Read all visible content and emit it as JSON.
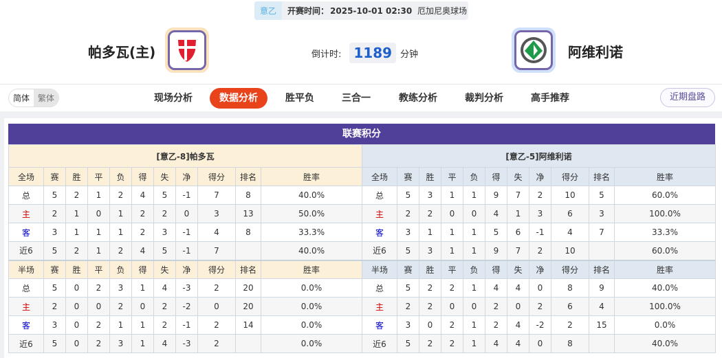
{
  "header": {
    "league": "意乙",
    "time_label": "开赛时间：",
    "time": "2025-10-01 02:30",
    "venue": "厄加尼奥球场",
    "home_team": "帕多瓦(主)",
    "away_team": "阿维利诺",
    "countdown_label": "倒计时:",
    "countdown": "1189",
    "countdown_unit": "分钟"
  },
  "nav": {
    "lang": [
      "简体",
      "繁体"
    ],
    "tabs": [
      "现场分析",
      "数据分析",
      "胜平负",
      "三合一",
      "教练分析",
      "裁判分析",
      "高手推荐"
    ],
    "active": "数据分析",
    "recent": "近期盘路"
  },
  "colors": {
    "accent": "#e8431a",
    "title_bar": "#51409a",
    "home_label": "#d20000",
    "away_label": "#0000cc"
  },
  "standings": {
    "title": "联赛积分",
    "columns": [
      "赛",
      "胜",
      "平",
      "负",
      "得",
      "失",
      "净",
      "得分",
      "排名",
      "胜率"
    ],
    "tables": [
      {
        "team": "[意乙-8]帕多瓦",
        "full_label": "全场",
        "full": [
          [
            "总",
            "5",
            "2",
            "1",
            "2",
            "4",
            "5",
            "-1",
            "7",
            "8",
            "40.0%"
          ],
          [
            "主",
            "2",
            "1",
            "0",
            "1",
            "2",
            "2",
            "0",
            "3",
            "13",
            "50.0%"
          ],
          [
            "客",
            "3",
            "1",
            "1",
            "1",
            "2",
            "3",
            "-1",
            "4",
            "8",
            "33.3%"
          ],
          [
            "近6",
            "5",
            "2",
            "1",
            "2",
            "4",
            "5",
            "-1",
            "7",
            "",
            "40.0%"
          ]
        ],
        "half_label": "半场",
        "half": [
          [
            "总",
            "5",
            "0",
            "2",
            "3",
            "1",
            "4",
            "-3",
            "2",
            "20",
            "0.0%"
          ],
          [
            "主",
            "2",
            "0",
            "0",
            "2",
            "0",
            "2",
            "-2",
            "0",
            "20",
            "0.0%"
          ],
          [
            "客",
            "3",
            "0",
            "2",
            "1",
            "1",
            "2",
            "-1",
            "2",
            "14",
            "0.0%"
          ],
          [
            "近6",
            "5",
            "0",
            "2",
            "3",
            "1",
            "4",
            "-3",
            "2",
            "",
            "0.0%"
          ]
        ]
      },
      {
        "team": "[意乙-5]阿维利诺",
        "full_label": "全场",
        "full": [
          [
            "总",
            "5",
            "3",
            "1",
            "1",
            "9",
            "7",
            "2",
            "10",
            "5",
            "60.0%"
          ],
          [
            "主",
            "2",
            "2",
            "0",
            "0",
            "4",
            "1",
            "3",
            "6",
            "3",
            "100.0%"
          ],
          [
            "客",
            "3",
            "1",
            "1",
            "1",
            "5",
            "6",
            "-1",
            "4",
            "7",
            "33.3%"
          ],
          [
            "近6",
            "5",
            "3",
            "1",
            "1",
            "9",
            "7",
            "2",
            "10",
            "",
            "60.0%"
          ]
        ],
        "half_label": "半场",
        "half": [
          [
            "总",
            "5",
            "2",
            "2",
            "1",
            "4",
            "4",
            "0",
            "8",
            "9",
            "40.0%"
          ],
          [
            "主",
            "2",
            "2",
            "0",
            "0",
            "2",
            "0",
            "2",
            "6",
            "4",
            "100.0%"
          ],
          [
            "客",
            "3",
            "0",
            "2",
            "1",
            "2",
            "4",
            "-2",
            "2",
            "15",
            "0.0%"
          ],
          [
            "近6",
            "5",
            "2",
            "2",
            "1",
            "4",
            "4",
            "0",
            "8",
            "",
            "40.0%"
          ]
        ]
      }
    ]
  }
}
